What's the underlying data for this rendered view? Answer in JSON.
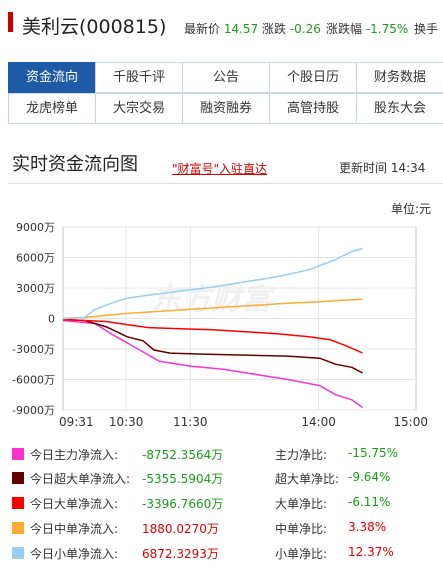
{
  "header": {
    "name": "美利云(000815)",
    "latest_label": "最新价",
    "latest_value": "14.57",
    "change_label": "涨跌",
    "change_value": "-0.26",
    "pct_label": "涨跌幅",
    "pct_value": "-1.75%",
    "more_label": "换手"
  },
  "tabs": [
    "资金流向",
    "千股千评",
    "公告",
    "个股日历",
    "财务数据",
    "龙虎榜单",
    "大宗交易",
    "融资融券",
    "高管持股",
    "股东大会"
  ],
  "section": {
    "title": "实时资金流向图",
    "promo": "\"财富号\"入驻直达",
    "update_label": "更新时间",
    "update_time": "14:34",
    "unit": "单位:元",
    "watermark": "东方财富"
  },
  "chart_data": {
    "type": "line",
    "x_ticks": [
      "09:31",
      "10:30",
      "11:30",
      "14:00",
      "15:00"
    ],
    "y_ticks": [
      "9000万",
      "6000万",
      "3000万",
      "0",
      "-3000万",
      "-6000万",
      "-9000万"
    ],
    "ylim": [
      -9000,
      9000
    ],
    "y_unit": "万",
    "grid": true,
    "series": [
      {
        "name": "今日主力净流入",
        "color": "#ff33cc",
        "end": -8752.3564,
        "points": [
          [
            0,
            -200
          ],
          [
            10,
            -300
          ],
          [
            30,
            -500
          ],
          [
            45,
            -1500
          ],
          [
            70,
            -3000
          ],
          [
            90,
            -4200
          ],
          [
            120,
            -4700
          ],
          [
            150,
            -5000
          ],
          [
            180,
            -5500
          ],
          [
            210,
            -6000
          ],
          [
            240,
            -6600
          ],
          [
            255,
            -7500
          ],
          [
            270,
            -8000
          ],
          [
            280,
            -8752
          ]
        ]
      },
      {
        "name": "今日超大单净流入",
        "color": "#660000",
        "end": -5355.5904,
        "points": [
          [
            0,
            -100
          ],
          [
            20,
            -200
          ],
          [
            40,
            -800
          ],
          [
            60,
            -1800
          ],
          [
            75,
            -2200
          ],
          [
            85,
            -3100
          ],
          [
            100,
            -3400
          ],
          [
            130,
            -3500
          ],
          [
            170,
            -3600
          ],
          [
            210,
            -3700
          ],
          [
            240,
            -3900
          ],
          [
            255,
            -4500
          ],
          [
            270,
            -4800
          ],
          [
            280,
            -5355
          ]
        ]
      },
      {
        "name": "今日大单净流入",
        "color": "#ff0000",
        "end": -3396.766,
        "points": [
          [
            0,
            -100
          ],
          [
            20,
            -200
          ],
          [
            40,
            -300
          ],
          [
            60,
            -600
          ],
          [
            80,
            -900
          ],
          [
            110,
            -1000
          ],
          [
            140,
            -1100
          ],
          [
            170,
            -1300
          ],
          [
            200,
            -1500
          ],
          [
            230,
            -1800
          ],
          [
            250,
            -2100
          ],
          [
            265,
            -2700
          ],
          [
            280,
            -3396
          ]
        ]
      },
      {
        "name": "今日中单净流入",
        "color": "#ffaa33",
        "end": 1880.027,
        "points": [
          [
            0,
            0
          ],
          [
            20,
            100
          ],
          [
            40,
            300
          ],
          [
            60,
            500
          ],
          [
            90,
            700
          ],
          [
            120,
            900
          ],
          [
            150,
            1100
          ],
          [
            180,
            1300
          ],
          [
            210,
            1500
          ],
          [
            240,
            1650
          ],
          [
            260,
            1800
          ],
          [
            280,
            1880
          ]
        ]
      },
      {
        "name": "今日小单净流入",
        "color": "#99ccee",
        "end": 6872.3293,
        "points": [
          [
            0,
            0
          ],
          [
            20,
            100
          ],
          [
            30,
            900
          ],
          [
            45,
            1500
          ],
          [
            60,
            2000
          ],
          [
            80,
            2300
          ],
          [
            110,
            2700
          ],
          [
            140,
            3100
          ],
          [
            170,
            3600
          ],
          [
            200,
            4100
          ],
          [
            230,
            4800
          ],
          [
            255,
            5800
          ],
          [
            270,
            6600
          ],
          [
            280,
            6872
          ]
        ]
      }
    ]
  },
  "legend": [
    {
      "label": "今日主力净流入:",
      "value": "-8752.3564万",
      "ratio_label": "主力净比:",
      "ratio": "-15.75%",
      "color": "#ff33cc",
      "sign": "neg"
    },
    {
      "label": "今日超大单净流入:",
      "value": "-5355.5904万",
      "ratio_label": "超大单净比:",
      "ratio": "-9.64%",
      "color": "#660000",
      "sign": "neg"
    },
    {
      "label": "今日大单净流入:",
      "value": "-3396.7660万",
      "ratio_label": "大单净比:",
      "ratio": "-6.11%",
      "color": "#ff0000",
      "sign": "neg"
    },
    {
      "label": "今日中单净流入:",
      "value": "1880.0270万",
      "ratio_label": "中单净比:",
      "ratio": "3.38%",
      "color": "#ffaa33",
      "sign": "pos"
    },
    {
      "label": "今日小单净流入:",
      "value": "6872.3293万",
      "ratio_label": "小单净比:",
      "ratio": "12.37%",
      "color": "#99ccee",
      "sign": "pos"
    }
  ]
}
